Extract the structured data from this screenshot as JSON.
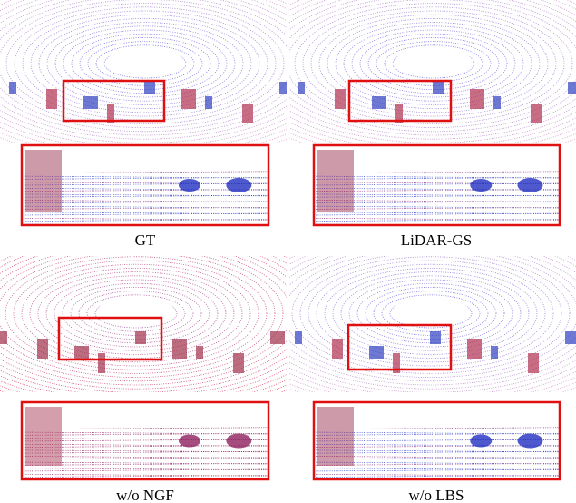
{
  "panels": [
    {
      "caption": "GT"
    },
    {
      "caption": "LiDAR-GS"
    },
    {
      "caption": "w/o NGF"
    },
    {
      "caption": "w/o LBS"
    }
  ]
}
